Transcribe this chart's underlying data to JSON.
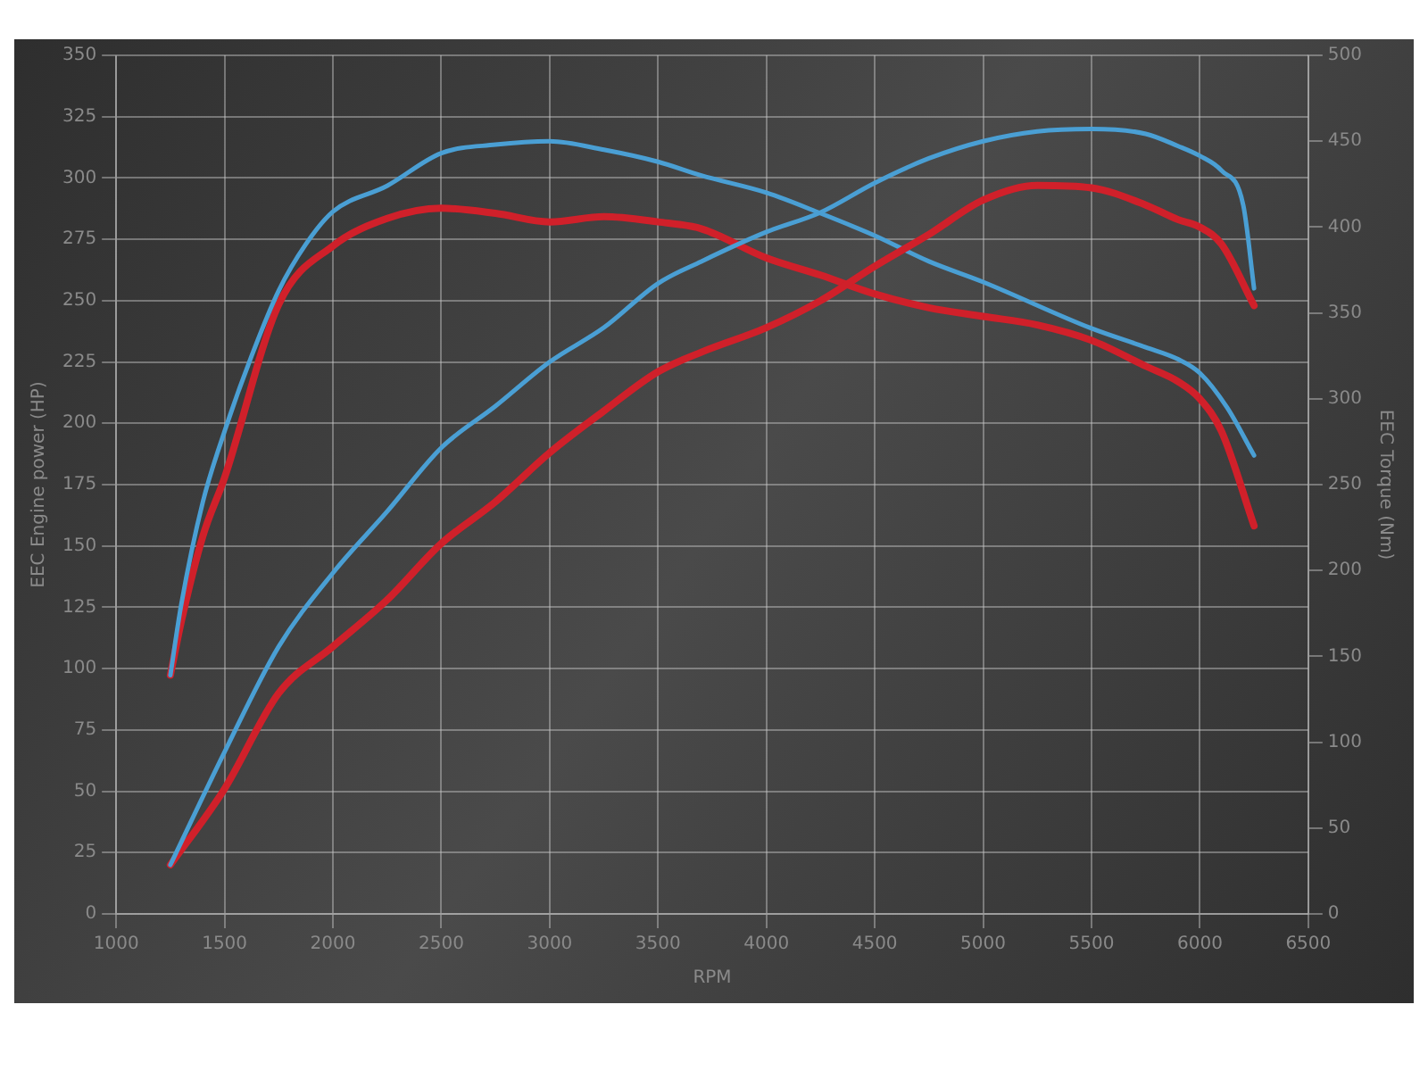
{
  "chart_data": {
    "type": "line",
    "xlabel": "RPM",
    "ylabel": "EEC Engine power (HP)",
    "y2label": "EEC Torque (Nm)",
    "xlim": [
      1000,
      6500
    ],
    "xticks": [
      1000,
      1500,
      2000,
      2500,
      3000,
      3500,
      4000,
      4500,
      5000,
      5500,
      6000,
      6500
    ],
    "ylim": [
      0,
      350
    ],
    "yticks": [
      0,
      25,
      50,
      75,
      100,
      125,
      150,
      175,
      200,
      225,
      250,
      275,
      300,
      325,
      350
    ],
    "y2lim": [
      0,
      500
    ],
    "y2ticks": [
      0,
      50,
      100,
      150,
      200,
      250,
      300,
      350,
      400,
      450,
      500
    ],
    "grid": true,
    "legend": false,
    "marker": "none",
    "line_style": "solid",
    "series": [
      {
        "color": "#4a9fd4",
        "x": [
          1250,
          1500,
          1750,
          2000,
          2250,
          2500,
          2750,
          3000,
          3250,
          3500,
          3700,
          4000,
          4250,
          4500,
          4750,
          5000,
          5250,
          5500,
          5750,
          5900,
          6000,
          6100,
          6200,
          6250
        ],
        "values": [
          20,
          66,
          109,
          139,
          164,
          190,
          207,
          225,
          239,
          257,
          266,
          278,
          286,
          298,
          308,
          315,
          319,
          320,
          318,
          313,
          309,
          303,
          289,
          255
        ]
      },
      {
        "color": "#d0202a",
        "x": [
          1250,
          1500,
          1750,
          2000,
          2250,
          2500,
          2750,
          3000,
          3250,
          3500,
          3700,
          4000,
          4250,
          4500,
          4750,
          5000,
          5250,
          5500,
          5750,
          5900,
          6000,
          6100,
          6250
        ],
        "values": [
          20,
          51,
          90,
          109,
          128,
          151,
          168,
          188,
          205,
          221,
          229,
          239,
          250,
          264,
          277,
          291,
          297,
          296,
          289,
          283,
          280,
          273,
          248
        ]
      },
      {
        "color": "#4a9fd4",
        "axis": "y2",
        "x": [
          1250,
          1300,
          1400,
          1500,
          1625,
          1750,
          1875,
          2000,
          2250,
          2500,
          2750,
          3000,
          3250,
          3500,
          3700,
          4000,
          4250,
          4500,
          4750,
          5000,
          5500,
          5750,
          5900,
          6000,
          6125,
          6250
        ],
        "values": [
          139,
          180,
          240,
          281,
          325,
          363,
          390,
          409,
          424,
          443,
          448,
          450,
          445,
          438,
          430,
          420,
          408,
          395,
          380,
          368,
          341,
          330,
          323,
          315,
          295,
          267
        ]
      },
      {
        "color": "#d0202a",
        "axis": "y2",
        "x": [
          1250,
          1300,
          1400,
          1500,
          1750,
          2000,
          2250,
          2500,
          2750,
          3000,
          3250,
          3500,
          3700,
          4000,
          4250,
          4500,
          4750,
          5000,
          5250,
          5500,
          5750,
          5900,
          6000,
          6100,
          6250
        ],
        "values": [
          139,
          170,
          220,
          254,
          355,
          389,
          405,
          411,
          408,
          403,
          406,
          403,
          399,
          382,
          372,
          361,
          353,
          348,
          343,
          334,
          319,
          310,
          300,
          281,
          226
        ]
      }
    ]
  }
}
